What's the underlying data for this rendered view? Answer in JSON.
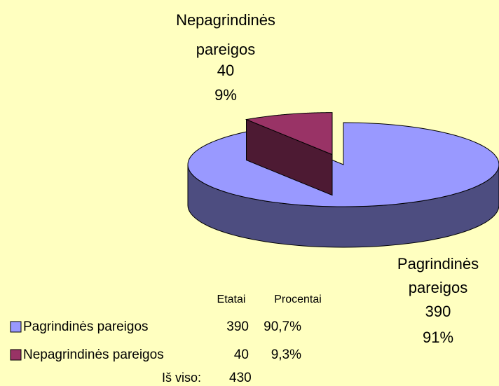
{
  "chart_data": {
    "type": "pie3d",
    "categories": [
      "Pagrindinės pareigos",
      "Nepagrindinės pareigos"
    ],
    "values": [
      390,
      40
    ],
    "percent_labels": [
      "91%",
      "9%"
    ],
    "colors": [
      "#9999ff",
      "#993366"
    ],
    "side_colors": [
      "#4d4d80",
      "#4d1a33"
    ],
    "background": "#ffffc0"
  },
  "table": {
    "columns": [
      "Etatai",
      "Procentai"
    ],
    "rows": [
      [
        "390",
        "90,7%"
      ],
      [
        "40",
        "9,3%"
      ]
    ],
    "total_label": "Iš viso:",
    "total": "430"
  }
}
